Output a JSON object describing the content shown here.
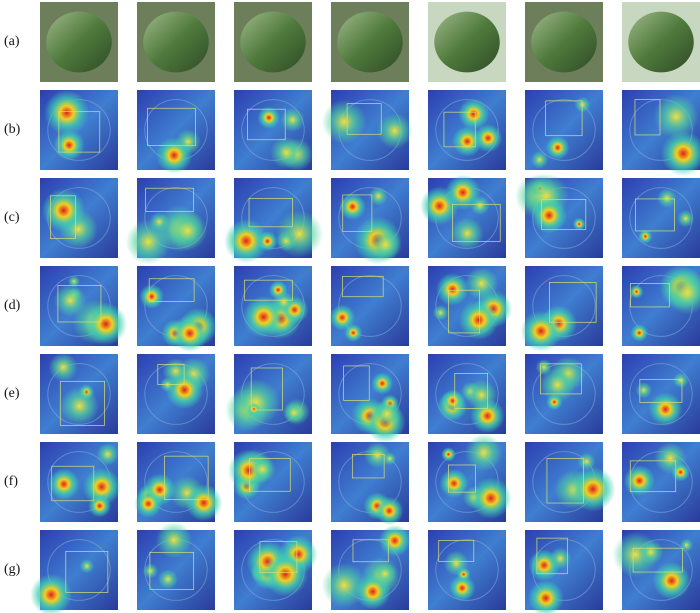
{
  "rows": [
    {
      "label": "(a)"
    },
    {
      "label": "(b)"
    },
    {
      "label": "(c)"
    },
    {
      "label": "(d)"
    },
    {
      "label": "(e)"
    },
    {
      "label": "(f)"
    },
    {
      "label": "(g)"
    }
  ]
}
